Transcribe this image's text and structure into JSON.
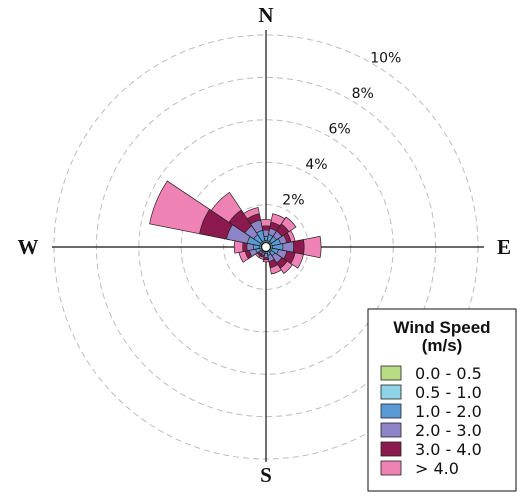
{
  "chart_data": {
    "type": "windrose",
    "directions": [
      "N",
      "NNE",
      "NE",
      "ENE",
      "E",
      "ESE",
      "SE",
      "SSE",
      "S",
      "SSW",
      "SW",
      "WSW",
      "W",
      "WNW",
      "NW",
      "NNW"
    ],
    "compass_labels": {
      "N": "N",
      "E": "E",
      "S": "S",
      "W": "W"
    },
    "ring_values": [
      2,
      4,
      6,
      8,
      10
    ],
    "ring_labels": [
      "2%",
      "4%",
      "6%",
      "8%",
      "10%"
    ],
    "rmax": 10,
    "grid": true,
    "legend": {
      "title": "Wind Speed",
      "subtitle": "(m/s)",
      "placement": "bottom-right"
    },
    "bins": [
      {
        "label": "0.0 - 0.5",
        "color": "#b7dc85"
      },
      {
        "label": "0.5 - 1.0",
        "color": "#8fd3e6"
      },
      {
        "label": "1.0 - 2.0",
        "color": "#5b9bd5"
      },
      {
        "label": "2.0 - 3.0",
        "color": "#8e84c8"
      },
      {
        "label": "3.0 - 4.0",
        "color": "#8d1a4e"
      },
      {
        "label": "> 4.0",
        "color": "#ee82b4"
      }
    ],
    "values_cumulative": [
      [
        0.1,
        0.3,
        0.5,
        0.8,
        1.0,
        1.3
      ],
      [
        0.1,
        0.3,
        0.6,
        0.9,
        1.2,
        1.6
      ],
      [
        0.1,
        0.3,
        0.6,
        0.9,
        1.3,
        1.7
      ],
      [
        0.1,
        0.3,
        0.7,
        1.0,
        1.2,
        1.4
      ],
      [
        0.1,
        0.3,
        0.8,
        1.3,
        1.8,
        2.6
      ],
      [
        0.1,
        0.3,
        0.6,
        1.0,
        1.4,
        1.8
      ],
      [
        0.1,
        0.3,
        0.5,
        0.9,
        1.2,
        1.5
      ],
      [
        0.1,
        0.2,
        0.4,
        0.7,
        1.0,
        1.3
      ],
      [
        0.1,
        0.2,
        0.3,
        0.5,
        0.6,
        0.7
      ],
      [
        0.1,
        0.2,
        0.3,
        0.4,
        0.5,
        0.6
      ],
      [
        0.1,
        0.2,
        0.3,
        0.4,
        0.5,
        0.6
      ],
      [
        0.1,
        0.3,
        0.5,
        0.8,
        1.0,
        1.3
      ],
      [
        0.1,
        0.3,
        0.6,
        0.9,
        1.1,
        1.5
      ],
      [
        0.1,
        0.3,
        0.9,
        1.9,
        3.2,
        5.6
      ],
      [
        0.1,
        0.3,
        0.7,
        1.2,
        2.1,
        3.1
      ],
      [
        0.1,
        0.3,
        0.8,
        1.3,
        1.6,
        1.9
      ]
    ]
  }
}
